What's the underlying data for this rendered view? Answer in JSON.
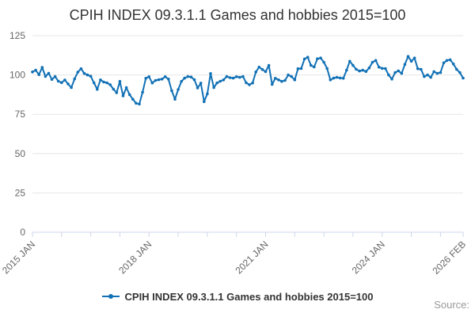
{
  "header": {
    "title": "CPIH INDEX 09.3.1.1 Games and hobbies 2015=100"
  },
  "footer": {
    "source_label": "Source:"
  },
  "legend": {
    "series_label": "CPIH INDEX 09.3.1.1 Games and hobbies 2015=100"
  },
  "chart_data": {
    "type": "line",
    "title": "CPIH INDEX 09.3.1.1 Games and hobbies 2015=100",
    "x_start": "2015 JAN",
    "x_end": "2026 FEB",
    "x_unit": "month",
    "x_tick_interval_months": 9,
    "x_tick_labels": [
      {
        "m": 0,
        "label": "2015 JAN"
      },
      {
        "m": 36,
        "label": "2018 JAN"
      },
      {
        "m": 72,
        "label": "2021 JAN"
      },
      {
        "m": 108,
        "label": "2024 JAN"
      },
      {
        "m": 133,
        "label": "2026 FEB"
      }
    ],
    "yticks": [
      0,
      25,
      50,
      75,
      100,
      125
    ],
    "ylim": [
      0,
      125
    ],
    "grid": true,
    "legend_position": "bottom-center",
    "line_color": "#1271b5",
    "grid_color": "#e6e6e6",
    "axis_color": "#ccd6eb",
    "label_color": "#666666",
    "values": [
      101.9,
      103.0,
      100.2,
      104.8,
      99.1,
      101.1,
      97.2,
      99.0,
      96.0,
      95.1,
      96.8,
      94.3,
      92.0,
      97.5,
      101.8,
      104.0,
      101.0,
      100.0,
      99.2,
      95.0,
      90.9,
      96.9,
      95.5,
      95.0,
      93.8,
      91.0,
      88.7,
      95.9,
      86.7,
      92.0,
      87.5,
      84.6,
      82.0,
      81.5,
      89.0,
      97.9,
      98.9,
      94.9,
      96.5,
      97.0,
      97.4,
      98.9,
      97.4,
      90.0,
      84.6,
      90.8,
      95.9,
      98.0,
      99.0,
      98.7,
      97.0,
      91.8,
      94.8,
      83.0,
      88.0,
      100.9,
      92.0,
      94.9,
      96.0,
      96.9,
      99.0,
      98.3,
      98.0,
      98.9,
      98.5,
      99.0,
      95.0,
      93.8,
      94.9,
      101.9,
      105.0,
      103.5,
      102.1,
      106.1,
      94.0,
      97.9,
      96.9,
      95.9,
      96.5,
      100.0,
      99.0,
      96.9,
      104.0,
      104.1,
      110.2,
      111.3,
      106.1,
      105.1,
      110.3,
      110.8,
      108.1,
      104.1,
      96.9,
      98.0,
      98.5,
      98.1,
      97.9,
      103.0,
      108.7,
      106.1,
      103.6,
      102.5,
      103.0,
      102.2,
      104.5,
      108.1,
      109.2,
      105.0,
      104.2,
      104.1,
      100.0,
      97.4,
      101.5,
      102.6,
      101.0,
      106.7,
      111.8,
      108.7,
      110.8,
      104.0,
      103.6,
      99.0,
      100.0,
      98.5,
      102.1,
      101.0,
      101.5,
      107.7,
      109.2,
      109.7,
      107.0,
      103.6,
      101.5,
      98.0
    ]
  }
}
